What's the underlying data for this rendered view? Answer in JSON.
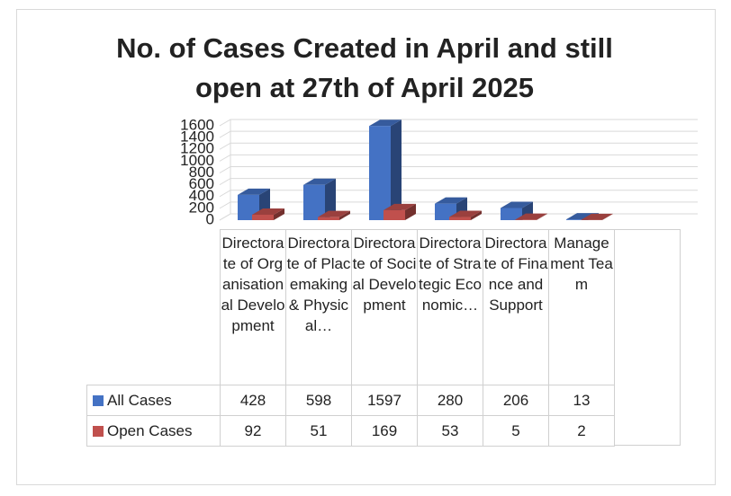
{
  "chart_data": {
    "type": "bar3d",
    "title": "No. of Cases Created in April  and still open at 27th of April  2025",
    "categories": [
      "Directorate of Organisational Development",
      "Directorate of Placemaking & Physical…",
      "Directorate of Social Development",
      "Directorate of Strategic Economic…",
      "Directorate of Finance and Support",
      "Management Team"
    ],
    "series": [
      {
        "name": "All Cases",
        "color": "#4472c4",
        "values": [
          428,
          598,
          1597,
          280,
          206,
          13
        ]
      },
      {
        "name": "Open Cases",
        "color": "#c0504d",
        "values": [
          92,
          51,
          169,
          53,
          5,
          2
        ]
      }
    ],
    "ylim": [
      0,
      1600
    ],
    "yticks": [
      0,
      200,
      400,
      600,
      800,
      1000,
      1200,
      1400,
      1600
    ],
    "grid": true
  }
}
